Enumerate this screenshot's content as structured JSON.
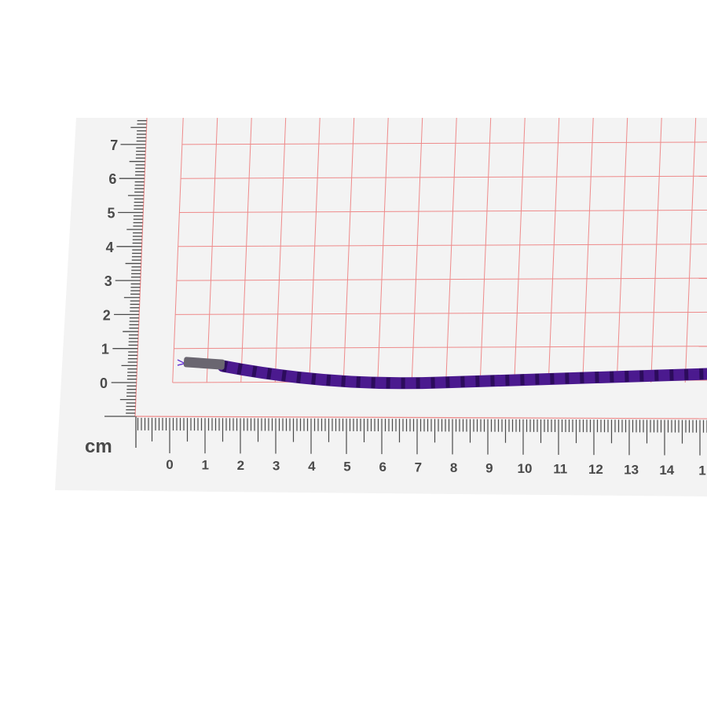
{
  "ruler": {
    "unit_label": "cm",
    "x_labels": [
      "0",
      "1",
      "2",
      "3",
      "4",
      "5",
      "6",
      "7",
      "8",
      "9",
      "10",
      "11",
      "12",
      "13",
      "14",
      "1"
    ],
    "y_labels": [
      "0",
      "1",
      "2",
      "3",
      "4",
      "5",
      "6",
      "7"
    ]
  },
  "colors": {
    "paper": "#f4f4f4",
    "grid": "#ee8a8a",
    "ruler_ticks": "#4a4a4a",
    "cord": "#4b1a8f",
    "cord_shadow": "#2c0c5c",
    "tip": "#6a6670"
  },
  "subject": "purple twisted cord with metal end tip"
}
